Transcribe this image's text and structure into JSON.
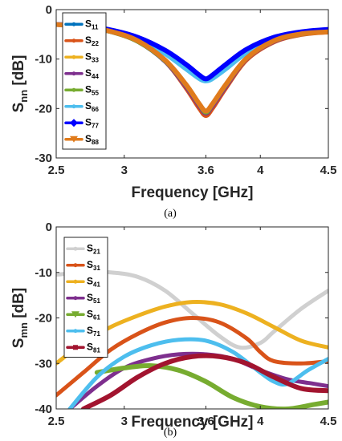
{
  "chart_data": [
    {
      "type": "line",
      "xlabel": "Frequency [GHz]",
      "ylabel_main": "S",
      "ylabel_sub": "nn",
      "ylabel_unit": " [dB]",
      "xlim": [
        2.5,
        4.5
      ],
      "ylim": [
        -30,
        0
      ],
      "xticks": [
        2.5,
        3,
        3.6,
        4,
        4.5
      ],
      "xtick_labels": [
        "2.5",
        "3",
        "3.6",
        "4",
        "4.5"
      ],
      "yticks": [
        0,
        -10,
        -20,
        -30
      ],
      "ytick_labels": [
        "0",
        "-10",
        "-20",
        "-30"
      ],
      "legend": "top-left",
      "grid": false,
      "caption": "(a)",
      "x": [
        2.5,
        2.7,
        2.9,
        3.1,
        3.3,
        3.45,
        3.55,
        3.6,
        3.65,
        3.75,
        3.9,
        4.1,
        4.3,
        4.5
      ],
      "series": [
        {
          "name_main": "S",
          "name_sub": "11",
          "color": "#0072BD",
          "marker": "none",
          "values": [
            -3.0,
            -3.5,
            -4.5,
            -6.5,
            -10.5,
            -15.5,
            -19.8,
            -21.0,
            -19.8,
            -15.5,
            -10.0,
            -6.5,
            -5.0,
            -4.5
          ]
        },
        {
          "name_main": "S",
          "name_sub": "22",
          "color": "#D95319",
          "marker": "none",
          "values": [
            -3.0,
            -3.5,
            -4.5,
            -6.5,
            -10.5,
            -15.8,
            -20.0,
            -21.5,
            -20.0,
            -15.8,
            -10.2,
            -6.6,
            -5.1,
            -4.6
          ]
        },
        {
          "name_main": "S",
          "name_sub": "33",
          "color": "#EDB120",
          "marker": "none",
          "values": [
            -3.0,
            -3.5,
            -4.5,
            -6.5,
            -10.3,
            -15.0,
            -19.0,
            -20.5,
            -19.0,
            -15.0,
            -9.8,
            -6.4,
            -5.0,
            -4.5
          ]
        },
        {
          "name_main": "S",
          "name_sub": "44",
          "color": "#7E2F8E",
          "marker": "none",
          "values": [
            -3.0,
            -3.5,
            -4.5,
            -6.5,
            -10.5,
            -15.5,
            -19.5,
            -21.0,
            -19.5,
            -15.5,
            -10.0,
            -6.5,
            -5.0,
            -4.5
          ]
        },
        {
          "name_main": "S",
          "name_sub": "55",
          "color": "#77AC30",
          "marker": "none",
          "values": [
            -3.0,
            -3.5,
            -4.5,
            -6.5,
            -10.4,
            -15.2,
            -19.2,
            -20.8,
            -19.2,
            -15.2,
            -9.9,
            -6.4,
            -5.0,
            -4.5
          ]
        },
        {
          "name_main": "S",
          "name_sub": "66",
          "color": "#4DBEEE",
          "marker": "none",
          "values": [
            -3.0,
            -3.4,
            -4.3,
            -6.0,
            -9.0,
            -12.0,
            -14.0,
            -14.5,
            -14.0,
            -12.0,
            -8.8,
            -6.0,
            -4.8,
            -4.3
          ]
        },
        {
          "name_main": "S",
          "name_sub": "77",
          "color": "#0000FF",
          "marker": "diamond",
          "values": [
            -3.0,
            -3.3,
            -4.1,
            -5.6,
            -8.2,
            -11.0,
            -13.2,
            -14.0,
            -13.2,
            -11.0,
            -8.0,
            -5.6,
            -4.5,
            -4.0
          ]
        },
        {
          "name_main": "S",
          "name_sub": "88",
          "color": "#E07B1C",
          "marker": "triangle",
          "values": [
            -3.0,
            -3.5,
            -4.4,
            -6.3,
            -10.2,
            -15.0,
            -19.0,
            -20.5,
            -19.0,
            -15.0,
            -9.8,
            -6.3,
            -4.9,
            -4.5
          ]
        }
      ]
    },
    {
      "type": "line",
      "xlabel": "Frequency [GHz]",
      "ylabel_main": "S",
      "ylabel_sub": "mn",
      "ylabel_unit": " [dB]",
      "xlim": [
        2.5,
        4.5
      ],
      "ylim": [
        -40,
        0
      ],
      "xticks": [
        2.5,
        3,
        3.6,
        4,
        4.5
      ],
      "xtick_labels": [
        "2.5",
        "3",
        "3.6",
        "4",
        "4.5"
      ],
      "yticks": [
        0,
        -10,
        -20,
        -30,
        -40
      ],
      "ytick_labels": [
        "0",
        "-10",
        "-20",
        "-30",
        "-40"
      ],
      "legend": "top-left",
      "grid": false,
      "caption": "(b)",
      "series": [
        {
          "name_main": "S",
          "name_sub": "21",
          "color": "#D0D0D0",
          "marker": "none",
          "x": [
            2.5,
            2.7,
            2.9,
            3.1,
            3.3,
            3.5,
            3.7,
            3.85,
            4.0,
            4.1,
            4.3,
            4.5
          ],
          "values": [
            -10.5,
            -10.0,
            -10.0,
            -11.0,
            -14.0,
            -19.0,
            -24.0,
            -26.5,
            -25.5,
            -23.0,
            -18.0,
            -14.0
          ]
        },
        {
          "name_main": "S",
          "name_sub": "31",
          "color": "#D95319",
          "marker": "none",
          "x": [
            2.5,
            2.7,
            2.9,
            3.1,
            3.3,
            3.5,
            3.7,
            3.9,
            4.0,
            4.1,
            4.3,
            4.5
          ],
          "values": [
            -37.0,
            -32.0,
            -27.0,
            -23.5,
            -21.0,
            -20.0,
            -21.0,
            -24.5,
            -27.5,
            -29.5,
            -30.0,
            -29.5
          ]
        },
        {
          "name_main": "S",
          "name_sub": "41",
          "color": "#EDB120",
          "marker": "none",
          "x": [
            2.5,
            2.7,
            2.9,
            3.1,
            3.3,
            3.5,
            3.7,
            3.9,
            4.1,
            4.3,
            4.5
          ],
          "values": [
            -30.0,
            -25.5,
            -22.0,
            -19.5,
            -17.5,
            -16.5,
            -17.0,
            -19.0,
            -22.0,
            -25.0,
            -26.5
          ]
        },
        {
          "name_main": "S",
          "name_sub": "51",
          "color": "#7E2F8E",
          "marker": "none",
          "x": [
            2.6,
            2.8,
            3.0,
            3.2,
            3.4,
            3.6,
            3.8,
            4.0,
            4.2,
            4.4,
            4.5
          ],
          "values": [
            -40.0,
            -35.0,
            -31.0,
            -29.0,
            -28.0,
            -28.0,
            -29.0,
            -31.5,
            -33.5,
            -34.5,
            -35.0
          ]
        },
        {
          "name_main": "S",
          "name_sub": "61",
          "color": "#77AC30",
          "marker": "triangle",
          "x": [
            2.8,
            3.0,
            3.2,
            3.4,
            3.6,
            3.8,
            4.0,
            4.2,
            4.4,
            4.5
          ],
          "values": [
            -32.0,
            -31.0,
            -30.5,
            -31.5,
            -34.0,
            -37.5,
            -39.5,
            -40.0,
            -39.0,
            -38.5
          ]
        },
        {
          "name_main": "S",
          "name_sub": "71",
          "color": "#4DBEEE",
          "marker": "none",
          "x": [
            2.6,
            2.8,
            3.0,
            3.2,
            3.4,
            3.6,
            3.8,
            4.0,
            4.1,
            4.2,
            4.35,
            4.5
          ],
          "values": [
            -40.0,
            -33.0,
            -28.5,
            -26.0,
            -24.8,
            -25.0,
            -27.5,
            -32.0,
            -34.0,
            -34.5,
            -31.5,
            -29.0
          ]
        },
        {
          "name_main": "S",
          "name_sub": "81",
          "color": "#A2142F",
          "marker": "square",
          "x": [
            2.7,
            2.9,
            3.1,
            3.3,
            3.5,
            3.7,
            3.9,
            4.1,
            4.3,
            4.5
          ],
          "values": [
            -40.0,
            -37.0,
            -33.0,
            -30.0,
            -28.5,
            -28.5,
            -30.0,
            -33.0,
            -35.5,
            -36.0
          ]
        }
      ]
    }
  ]
}
